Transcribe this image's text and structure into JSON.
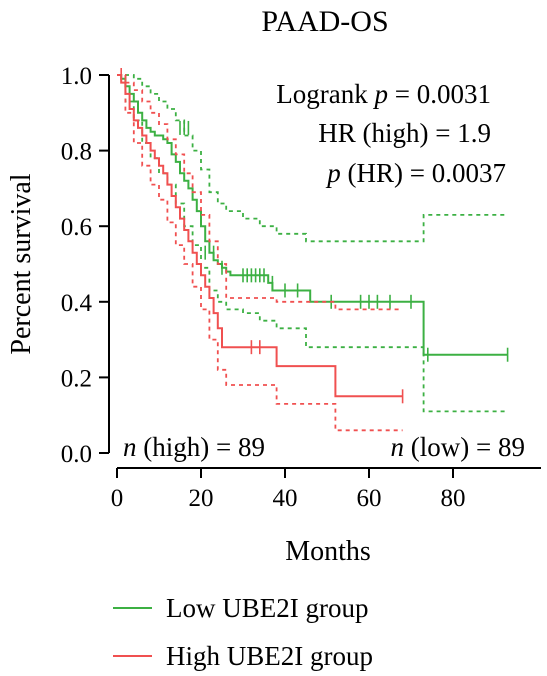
{
  "chart_data": {
    "type": "line",
    "subtype": "kaplan-meier",
    "title": "PAAD-OS",
    "xlabel": "Months",
    "ylabel": "Percent survival",
    "xlim": [
      0,
      95
    ],
    "ylim": [
      0,
      1.05
    ],
    "x_ticks": [
      0,
      20,
      40,
      60,
      80
    ],
    "x_tick_labels": [
      "0",
      "20",
      "40",
      "60",
      "80"
    ],
    "y_ticks": [
      0,
      0.2,
      0.4,
      0.6,
      0.8,
      1.0
    ],
    "y_tick_labels": [
      "0.0",
      "0.2",
      "0.4",
      "0.6",
      "0.8",
      "1.0"
    ],
    "annotations": {
      "logrank_prefix": "Logrank ",
      "logrank_p_symbol": "p",
      "logrank_value": " = 0.0031",
      "hr": "HR (high) = 1.9",
      "p_hr_symbol": "p",
      "p_hr_value": " (HR) = 0.0037",
      "n_high_symbol": "n",
      "n_high_value": " (high) = 89",
      "n_low_symbol": "n",
      "n_low_value": " (low) = 89"
    },
    "series": [
      {
        "name": "Low UBE2I group",
        "color": "#3cb043",
        "x": [
          0,
          1,
          2,
          3,
          4,
          5,
          6,
          7,
          8,
          9,
          10,
          11,
          12,
          13,
          14,
          15,
          16,
          17,
          18,
          19,
          20,
          21,
          22,
          23,
          24,
          25,
          26,
          27,
          36,
          37,
          45,
          46,
          72,
          73,
          93
        ],
        "y": [
          1.0,
          0.99,
          0.97,
          0.95,
          0.93,
          0.9,
          0.88,
          0.86,
          0.85,
          0.84,
          0.84,
          0.83,
          0.82,
          0.79,
          0.77,
          0.74,
          0.72,
          0.7,
          0.67,
          0.64,
          0.6,
          0.56,
          0.53,
          0.51,
          0.5,
          0.49,
          0.48,
          0.47,
          0.45,
          0.43,
          0.43,
          0.4,
          0.4,
          0.26,
          0.26
        ],
        "ci_upper": {
          "x": [
            0,
            2,
            4,
            6,
            8,
            10,
            12,
            14,
            16,
            18,
            20,
            22,
            24,
            26,
            30,
            34,
            38,
            45,
            72,
            73,
            93
          ],
          "y": [
            1.0,
            1.0,
            0.99,
            0.97,
            0.95,
            0.93,
            0.91,
            0.88,
            0.84,
            0.8,
            0.75,
            0.69,
            0.66,
            0.64,
            0.62,
            0.6,
            0.58,
            0.56,
            0.56,
            0.63,
            0.63
          ]
        },
        "ci_lower": {
          "x": [
            0,
            2,
            4,
            6,
            8,
            10,
            12,
            14,
            16,
            18,
            20,
            22,
            24,
            26,
            30,
            34,
            38,
            45,
            72,
            73,
            93
          ],
          "y": [
            1.0,
            0.93,
            0.88,
            0.82,
            0.78,
            0.74,
            0.71,
            0.66,
            0.6,
            0.55,
            0.49,
            0.43,
            0.4,
            0.38,
            0.37,
            0.35,
            0.33,
            0.28,
            0.28,
            0.11,
            0.11
          ]
        },
        "censor_x": [
          2,
          15,
          16,
          17,
          21,
          23,
          25,
          30,
          31,
          32,
          33,
          34,
          35,
          37,
          40,
          43,
          51,
          58,
          60,
          62,
          65,
          70,
          74,
          93
        ],
        "censor_y": [
          0.98,
          0.86,
          0.86,
          0.86,
          0.53,
          0.53,
          0.49,
          0.47,
          0.47,
          0.47,
          0.47,
          0.47,
          0.47,
          0.45,
          0.43,
          0.43,
          0.4,
          0.4,
          0.4,
          0.4,
          0.4,
          0.4,
          0.26,
          0.26
        ]
      },
      {
        "name": "High UBE2I group",
        "color": "#f05050",
        "x": [
          0,
          1,
          2,
          3,
          4,
          5,
          6,
          7,
          8,
          9,
          10,
          11,
          12,
          13,
          14,
          15,
          16,
          17,
          18,
          19,
          20,
          21,
          22,
          23,
          24,
          25,
          37,
          38,
          51,
          52,
          68
        ],
        "y": [
          1.0,
          0.98,
          0.95,
          0.91,
          0.88,
          0.86,
          0.84,
          0.82,
          0.8,
          0.78,
          0.76,
          0.74,
          0.71,
          0.68,
          0.65,
          0.62,
          0.59,
          0.56,
          0.53,
          0.5,
          0.47,
          0.44,
          0.41,
          0.37,
          0.33,
          0.28,
          0.28,
          0.23,
          0.23,
          0.15,
          0.15
        ],
        "ci_upper": {
          "x": [
            0,
            2,
            4,
            6,
            8,
            10,
            12,
            14,
            16,
            18,
            20,
            22,
            24,
            26,
            37,
            38,
            51,
            52,
            68
          ],
          "y": [
            1.0,
            0.98,
            0.96,
            0.93,
            0.9,
            0.87,
            0.83,
            0.79,
            0.74,
            0.69,
            0.63,
            0.56,
            0.5,
            0.41,
            0.41,
            0.4,
            0.4,
            0.38,
            0.38
          ]
        },
        "ci_lower": {
          "x": [
            0,
            2,
            4,
            6,
            8,
            10,
            12,
            14,
            16,
            18,
            20,
            22,
            24,
            26,
            37,
            38,
            51,
            52,
            68
          ],
          "y": [
            1.0,
            0.9,
            0.82,
            0.76,
            0.71,
            0.67,
            0.61,
            0.55,
            0.5,
            0.44,
            0.38,
            0.3,
            0.22,
            0.18,
            0.18,
            0.13,
            0.13,
            0.06,
            0.06
          ]
        },
        "censor_x": [
          1,
          2,
          32,
          34,
          68
        ],
        "censor_y": [
          1.0,
          0.98,
          0.28,
          0.28,
          0.15
        ]
      }
    ],
    "legend": [
      "Low UBE2I group",
      "High UBE2I group"
    ],
    "legend_position": "bottom",
    "grid": false
  }
}
